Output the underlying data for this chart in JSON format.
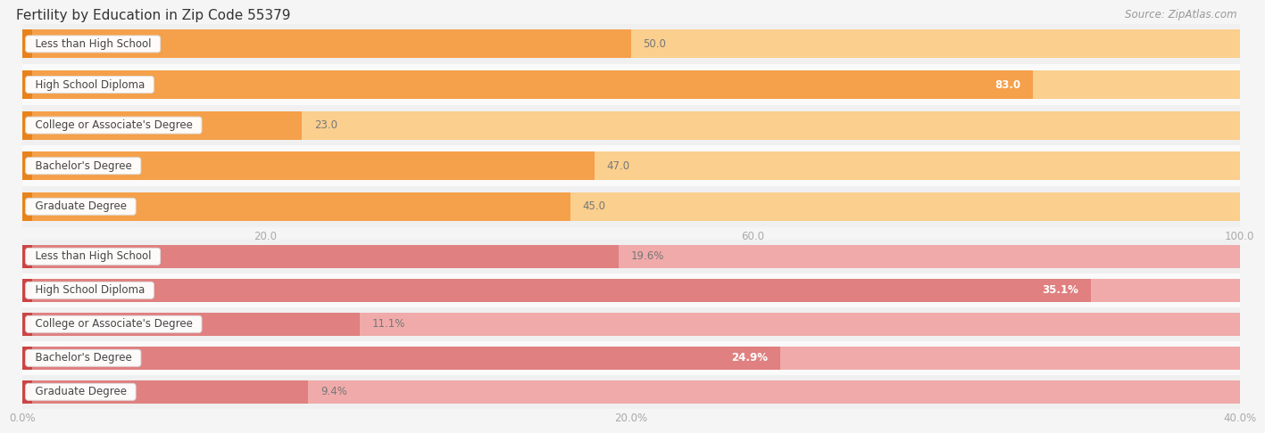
{
  "title": "Fertility by Education in Zip Code 55379",
  "source": "Source: ZipAtlas.com",
  "top_section": {
    "categories": [
      "Less than High School",
      "High School Diploma",
      "College or Associate's Degree",
      "Bachelor's Degree",
      "Graduate Degree"
    ],
    "values": [
      50.0,
      83.0,
      23.0,
      47.0,
      45.0
    ],
    "bar_color_main": "#F5A04A",
    "bar_color_light": "#FBCF8E",
    "bar_color_accent": "#E8821A",
    "xlim": [
      0,
      100
    ],
    "xticks": [
      20.0,
      60.0,
      100.0
    ],
    "xtick_labels": [
      "20.0",
      "60.0",
      "100.0"
    ]
  },
  "bottom_section": {
    "categories": [
      "Less than High School",
      "High School Diploma",
      "College or Associate's Degree",
      "Bachelor's Degree",
      "Graduate Degree"
    ],
    "values": [
      19.6,
      35.1,
      11.1,
      24.9,
      9.4
    ],
    "bar_color_main": "#E08080",
    "bar_color_light": "#F0AAAA",
    "bar_color_accent": "#CC4444",
    "xlim": [
      0,
      40
    ],
    "xticks": [
      0.0,
      20.0,
      40.0
    ],
    "xtick_labels": [
      "0.0%",
      "20.0%",
      "40.0%"
    ]
  },
  "bg_color": "#f5f5f5",
  "row_bg_even": "#f0f0f0",
  "row_bg_odd": "#fafafa",
  "label_font_size": 8.5,
  "title_font_size": 11,
  "source_font_size": 8.5
}
